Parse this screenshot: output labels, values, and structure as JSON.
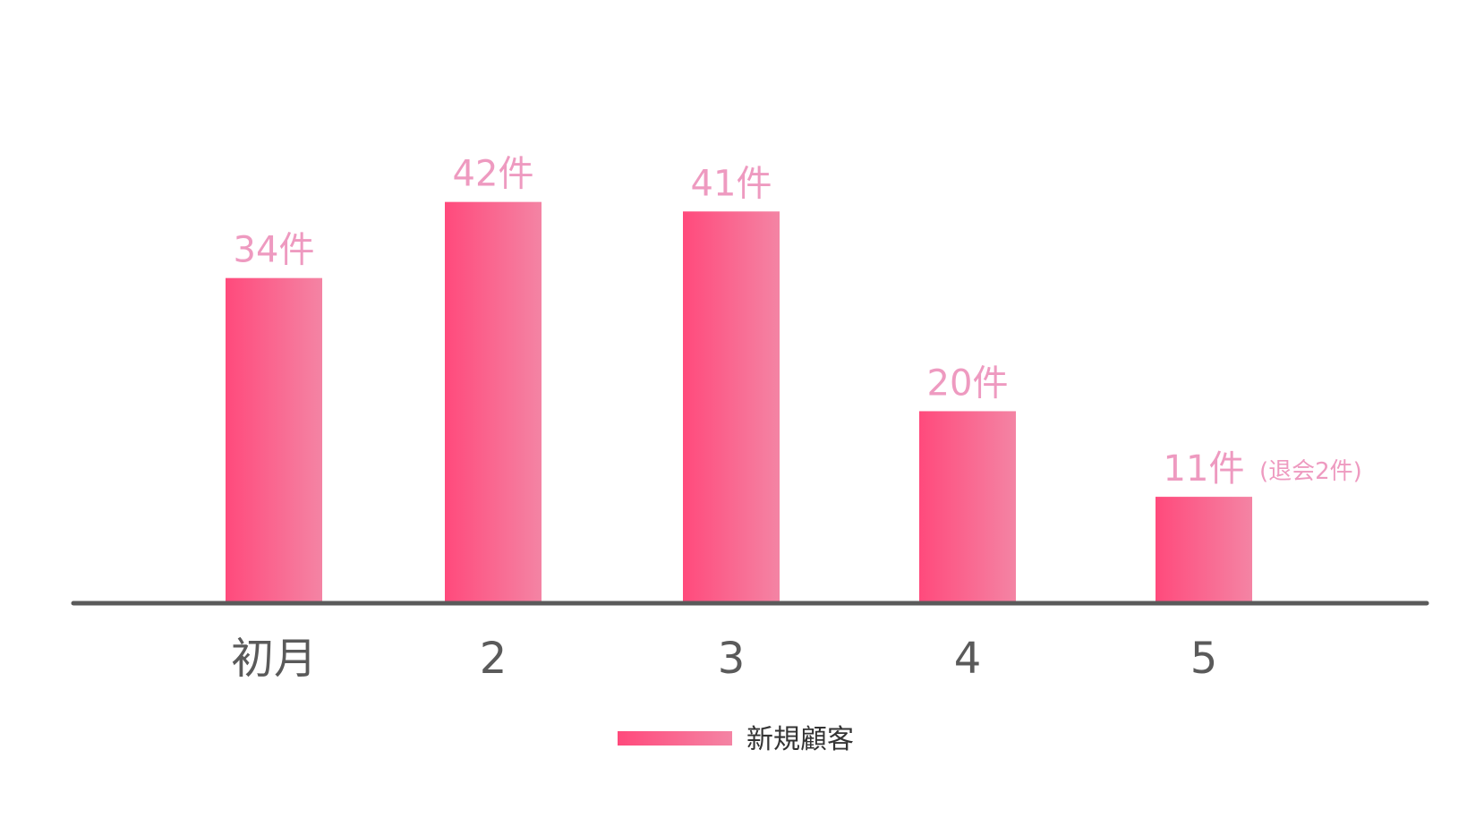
{
  "chart_data": {
    "type": "bar",
    "categories": [
      "初月",
      "2",
      "3",
      "4",
      "5"
    ],
    "series": [
      {
        "name": "新規顧客",
        "values": [
          34,
          42,
          41,
          20,
          11
        ]
      }
    ],
    "data_labels": [
      "34件",
      "42件",
      "41件",
      "20件",
      "11件"
    ],
    "annotations": [
      {
        "category": "5",
        "text": "(退会2件)"
      }
    ],
    "title": "",
    "xlabel": "",
    "ylabel": "",
    "ylim": [
      0,
      51
    ],
    "grid": false,
    "legend_position": "bottom-center",
    "colors": {
      "bar_gradient_start": "#ff4a7c",
      "bar_gradient_end": "#f484a4",
      "data_label": "#ee9ac0",
      "axis": "#5a5a5a",
      "tick_label": "#5a5a5a",
      "legend_text": "#333333"
    }
  }
}
